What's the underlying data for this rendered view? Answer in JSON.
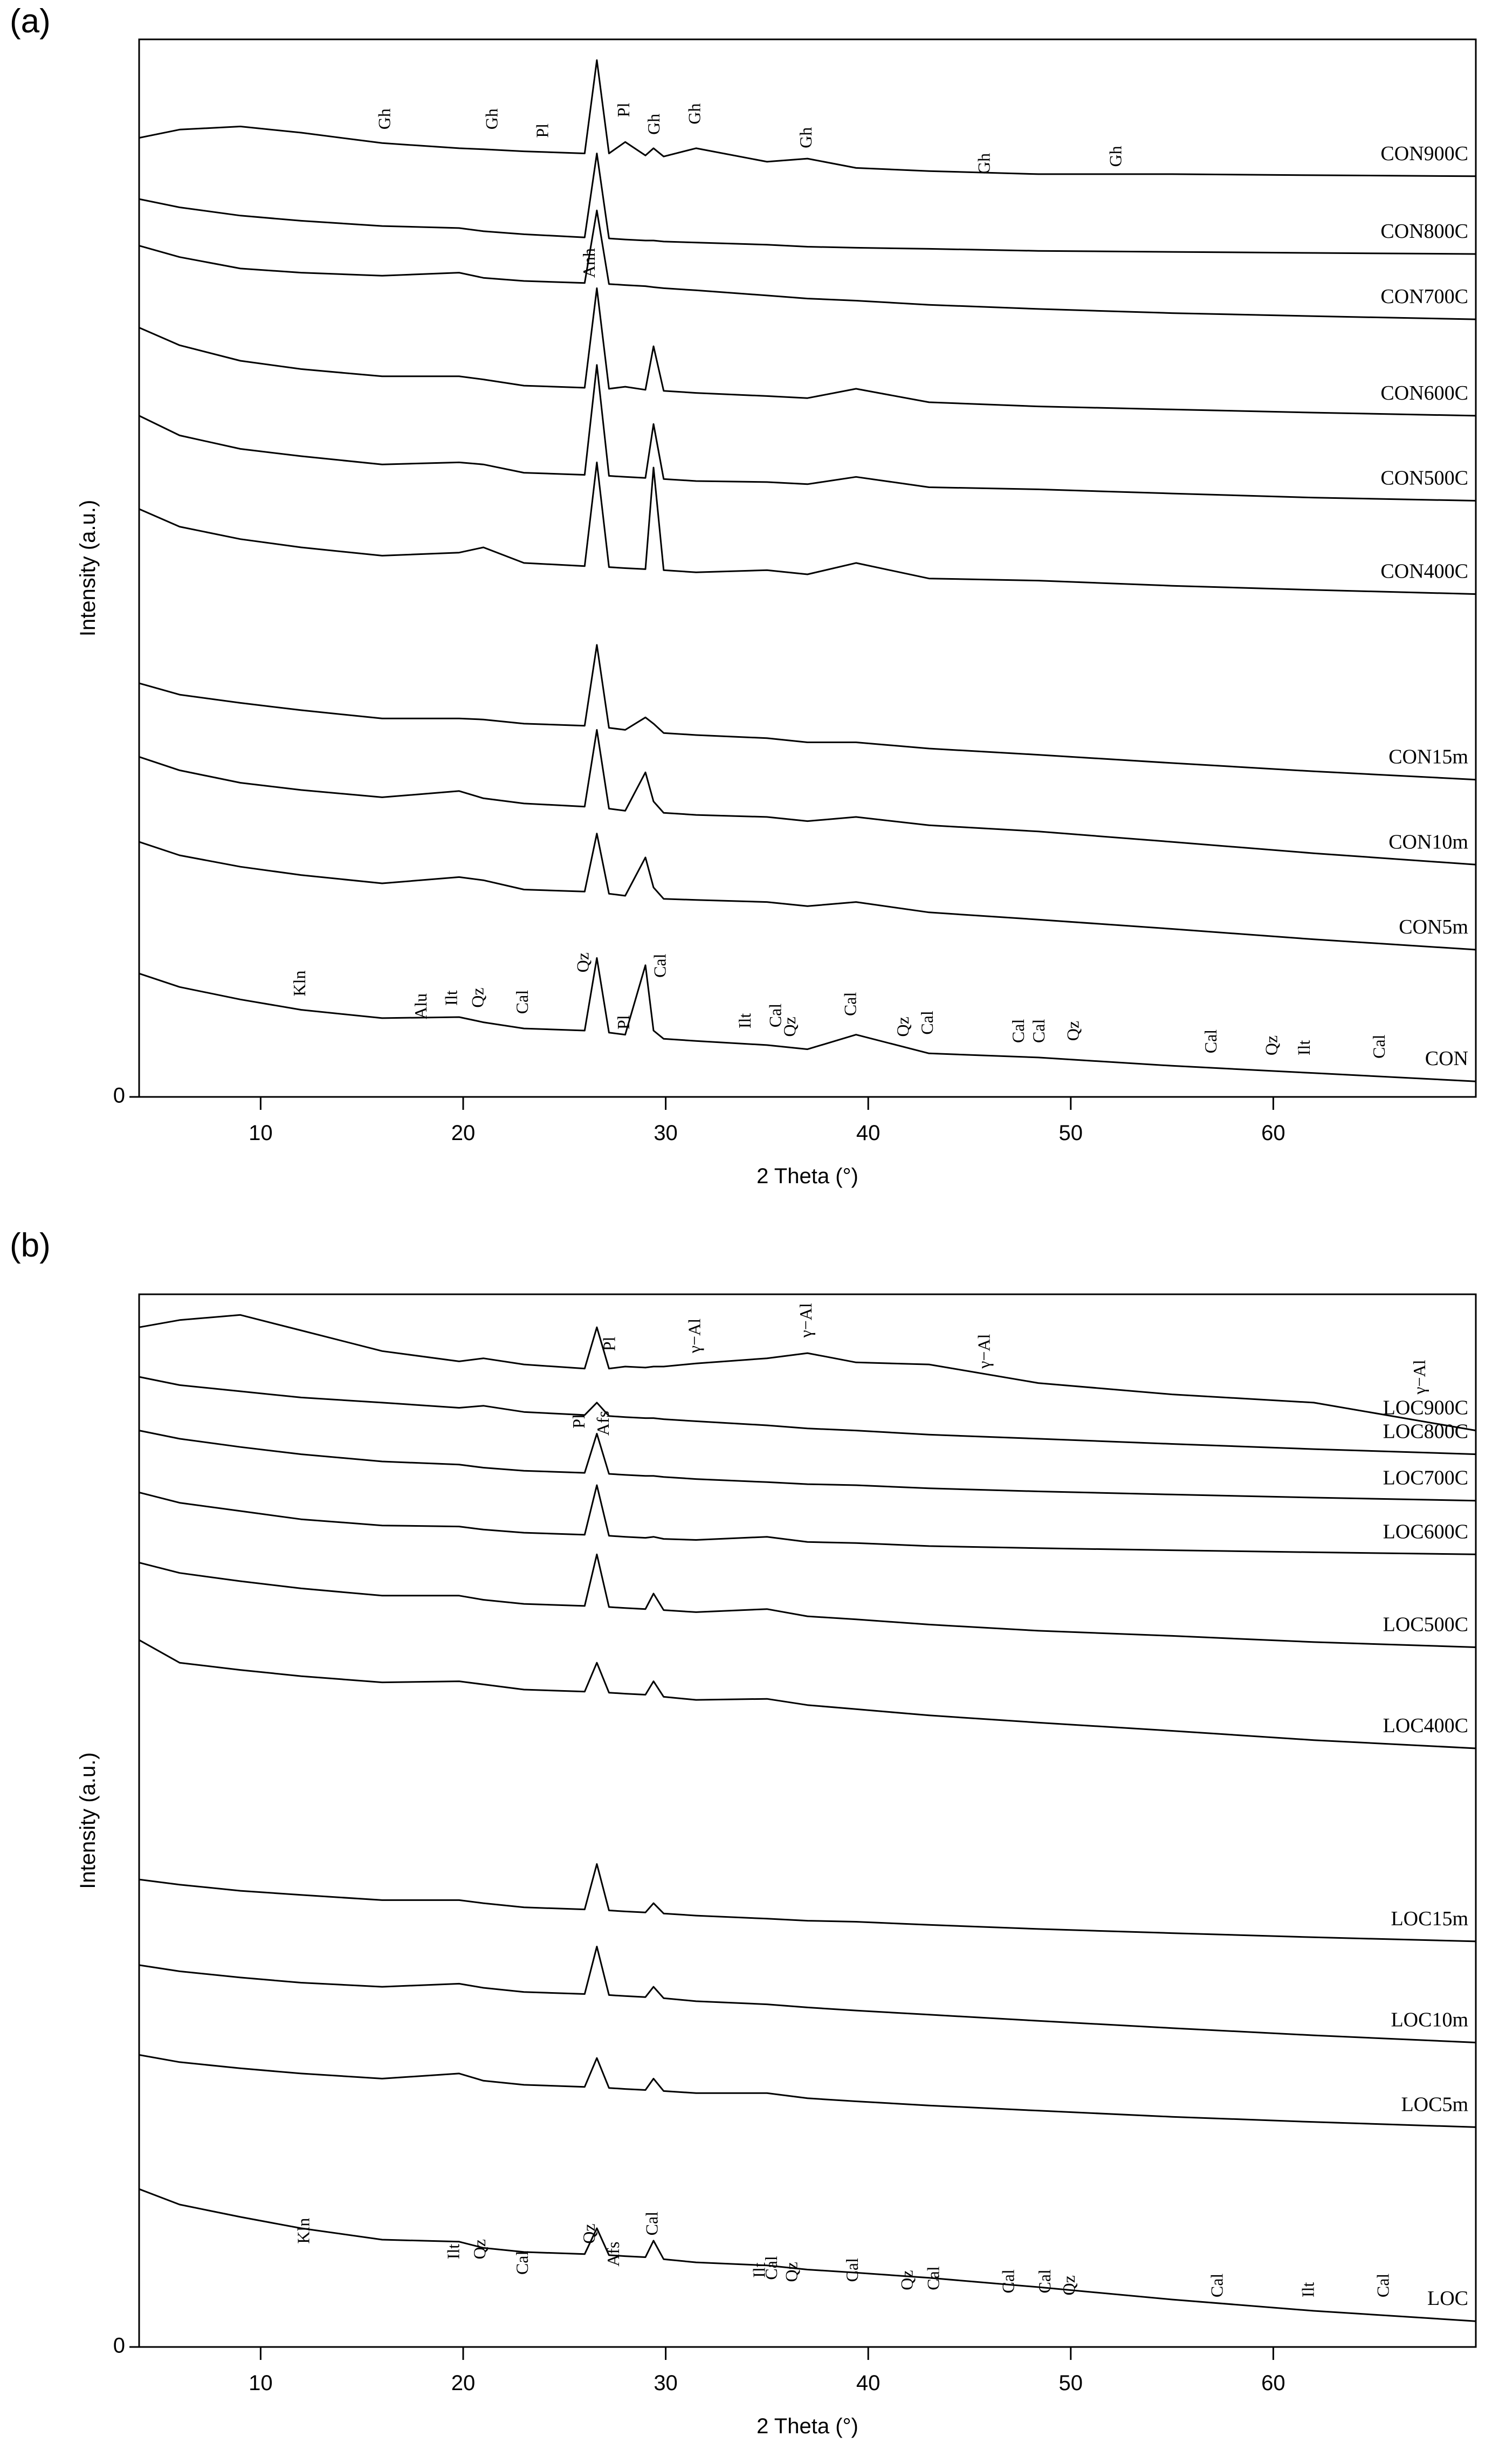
{
  "chart_data": [
    {
      "type": "line",
      "panel_label": "(a)",
      "xlabel": "2 Theta (°)",
      "ylabel": "Intensity (a.u.)",
      "x": [
        4,
        6,
        9,
        12,
        16,
        19.8,
        21,
        23,
        26.0,
        26.6,
        27.2,
        28,
        29.0,
        29.4,
        29.9,
        31.5,
        35,
        37,
        39.4,
        43,
        48.4,
        55,
        62,
        70
      ],
      "xlim": [
        4,
        70
      ],
      "xticks": [
        10,
        20,
        30,
        40,
        50,
        60
      ],
      "ylim": [
        0,
        102
      ],
      "yticks": [
        0
      ],
      "series": [
        {
          "name": "CON900C",
          "color": "#000000",
          "values": [
            92.5,
            93.3,
            93.6,
            93,
            92,
            91.5,
            91.4,
            91.2,
            91,
            100,
            91,
            92.1,
            90.8,
            91.5,
            90.7,
            91.5,
            90.2,
            90.5,
            89.6,
            89.3,
            89,
            89,
            88.9,
            88.8
          ]
        },
        {
          "name": "CON800C",
          "color": "#000000",
          "values": [
            86.6,
            85.8,
            85,
            84.5,
            84,
            83.8,
            83.5,
            83.2,
            82.9,
            91,
            82.8,
            82.7,
            82.6,
            82.6,
            82.5,
            82.4,
            82.2,
            82,
            81.9,
            81.8,
            81.6,
            81.5,
            81.4,
            81.3
          ]
        },
        {
          "name": "CON700C",
          "color": "#000000",
          "values": [
            82.1,
            81,
            79.9,
            79.5,
            79.2,
            79.5,
            79,
            78.7,
            78.5,
            85.5,
            78.4,
            78.3,
            78.2,
            78.1,
            78,
            77.8,
            77.3,
            77,
            76.8,
            76.4,
            76,
            75.6,
            75.3,
            75
          ]
        },
        {
          "name": "CON600C",
          "color": "#000000",
          "values": [
            74.2,
            72.5,
            71,
            70.2,
            69.5,
            69.5,
            69.2,
            68.6,
            68.4,
            78,
            68.3,
            68.5,
            68.2,
            72.4,
            68.1,
            67.9,
            67.6,
            67.4,
            68.3,
            67,
            66.6,
            66.3,
            66,
            65.7
          ]
        },
        {
          "name": "CON500C",
          "color": "#000000",
          "values": [
            65.7,
            63.8,
            62.5,
            61.8,
            61,
            61.2,
            61,
            60.2,
            60,
            70.6,
            59.9,
            59.8,
            59.7,
            64.9,
            59.6,
            59.4,
            59.3,
            59.1,
            59.8,
            58.8,
            58.6,
            58.2,
            57.8,
            57.5
          ]
        },
        {
          "name": "CON400C",
          "color": "#000000",
          "values": [
            56.7,
            55,
            53.8,
            53,
            52.2,
            52.5,
            53,
            51.5,
            51.2,
            61.2,
            51.1,
            51,
            50.9,
            60.7,
            50.8,
            50.6,
            50.8,
            50.4,
            51.5,
            50,
            49.8,
            49.3,
            48.9,
            48.5
          ]
        },
        {
          "name": "CON15m",
          "color": "#000000",
          "values": [
            39.9,
            38.8,
            38,
            37.3,
            36.5,
            36.5,
            36.4,
            36,
            35.8,
            43.6,
            35.6,
            35.4,
            36.6,
            36,
            35.1,
            34.9,
            34.6,
            34.2,
            34.2,
            33.6,
            33,
            32.2,
            31.4,
            30.6
          ]
        },
        {
          "name": "CON10m",
          "color": "#000000",
          "values": [
            32.8,
            31.5,
            30.3,
            29.6,
            28.9,
            29.5,
            28.8,
            28.3,
            28,
            35.4,
            27.8,
            27.6,
            31.3,
            28.5,
            27.4,
            27.2,
            27,
            26.6,
            27,
            26.2,
            25.6,
            24.6,
            23.5,
            22.4
          ]
        },
        {
          "name": "CON5m",
          "color": "#000000",
          "values": [
            24.6,
            23.3,
            22.2,
            21.4,
            20.6,
            21.2,
            20.9,
            20,
            19.8,
            25.4,
            19.6,
            19.4,
            23.1,
            20.2,
            19.1,
            19,
            18.8,
            18.4,
            18.8,
            17.8,
            17.1,
            16.2,
            15.2,
            14.2
          ]
        },
        {
          "name": "CON",
          "color": "#000000",
          "values": [
            11.9,
            10.6,
            9.4,
            8.4,
            7.6,
            7.7,
            7.2,
            6.6,
            6.4,
            13.4,
            6.2,
            6,
            12.7,
            6.4,
            5.6,
            5.4,
            5,
            4.6,
            6,
            4.2,
            3.8,
            3,
            2.3,
            1.5
          ]
        }
      ],
      "annotations": [
        {
          "text": "Gh",
          "x": 16.2,
          "y": 93.3
        },
        {
          "text": "Gh",
          "x": 21.5,
          "y": 93.3
        },
        {
          "text": "Pl",
          "x": 24,
          "y": 92.5
        },
        {
          "text": "Pl",
          "x": 28,
          "y": 94.5
        },
        {
          "text": "Gh",
          "x": 29.5,
          "y": 92.8
        },
        {
          "text": "Gh",
          "x": 31.5,
          "y": 93.8
        },
        {
          "text": "Gh",
          "x": 37,
          "y": 91.5
        },
        {
          "text": "Gh",
          "x": 45.8,
          "y": 89
        },
        {
          "text": "Gh",
          "x": 52.3,
          "y": 89.7
        },
        {
          "text": "Anh",
          "x": 26.3,
          "y": 79
        },
        {
          "text": "Kln",
          "x": 12,
          "y": 9.7
        },
        {
          "text": "Alu",
          "x": 18,
          "y": 7.5
        },
        {
          "text": "Ilt",
          "x": 19.5,
          "y": 8.8
        },
        {
          "text": "Qz",
          "x": 20.8,
          "y": 8.6
        },
        {
          "text": "Cal",
          "x": 23,
          "y": 8
        },
        {
          "text": "Qz",
          "x": 26,
          "y": 12
        },
        {
          "text": "Pl",
          "x": 28,
          "y": 6.5
        },
        {
          "text": "Cal",
          "x": 29.8,
          "y": 11.5
        },
        {
          "text": "Ilt",
          "x": 34,
          "y": 6.6
        },
        {
          "text": "Cal",
          "x": 35.5,
          "y": 6.7
        },
        {
          "text": "Qz",
          "x": 36.2,
          "y": 5.8
        },
        {
          "text": "Cal",
          "x": 39.2,
          "y": 7.8
        },
        {
          "text": "Qz",
          "x": 41.8,
          "y": 5.8
        },
        {
          "text": "Cal",
          "x": 43,
          "y": 6
        },
        {
          "text": "Cal",
          "x": 47.5,
          "y": 5.2
        },
        {
          "text": "Cal",
          "x": 48.5,
          "y": 5.2
        },
        {
          "text": "Qz",
          "x": 50.2,
          "y": 5.4
        },
        {
          "text": "Cal",
          "x": 57,
          "y": 4.2
        },
        {
          "text": "Qz",
          "x": 60,
          "y": 4
        },
        {
          "text": "Ilt",
          "x": 61.6,
          "y": 4
        },
        {
          "text": "Cal",
          "x": 65.3,
          "y": 3.7
        }
      ]
    },
    {
      "type": "line",
      "panel_label": "(b)",
      "xlabel": "2 Theta (°)",
      "ylabel": "Intensity (a.u.)",
      "x": [
        4,
        6,
        9,
        12,
        16,
        19.8,
        21,
        23,
        26.0,
        26.6,
        27.2,
        28,
        29.0,
        29.4,
        29.9,
        31.5,
        35,
        37,
        39.4,
        43,
        48.4,
        55,
        62,
        70
      ],
      "xlim": [
        4,
        70
      ],
      "xticks": [
        10,
        20,
        30,
        40,
        50,
        60
      ],
      "ylim": [
        0,
        102
      ],
      "yticks": [
        0
      ],
      "series": [
        {
          "name": "LOC900C",
          "color": "#000000",
          "values": [
            98.8,
            99.5,
            100,
            98.5,
            96.5,
            95.5,
            95.8,
            95.2,
            94.8,
            98.8,
            94.8,
            95,
            94.9,
            95,
            95,
            95.3,
            95.8,
            96.3,
            95.4,
            95.2,
            93.4,
            92.3,
            91.5,
            88.8
          ]
        },
        {
          "name": "LOC800C",
          "color": "#000000",
          "values": [
            94,
            93.2,
            92.6,
            92,
            91.5,
            91,
            91.2,
            90.6,
            90.3,
            91.5,
            90.2,
            90.1,
            90,
            90,
            89.9,
            89.7,
            89.3,
            89,
            88.8,
            88.4,
            88,
            87.5,
            87,
            86.5
          ]
        },
        {
          "name": "LOC700C",
          "color": "#000000",
          "values": [
            88.8,
            88,
            87.2,
            86.5,
            85.8,
            85.5,
            85.2,
            84.9,
            84.7,
            88.5,
            84.6,
            84.5,
            84.4,
            84.4,
            84.3,
            84.1,
            83.8,
            83.6,
            83.5,
            83.2,
            82.9,
            82.6,
            82.3,
            82
          ]
        },
        {
          "name": "LOC600C",
          "color": "#000000",
          "values": [
            82.8,
            81.8,
            81,
            80.2,
            79.6,
            79.5,
            79.2,
            78.9,
            78.7,
            83.5,
            78.6,
            78.5,
            78.4,
            78.5,
            78.3,
            78.2,
            78.5,
            78,
            77.9,
            77.6,
            77.4,
            77.2,
            77,
            76.8
          ]
        },
        {
          "name": "LOC500C",
          "color": "#000000",
          "values": [
            76,
            75,
            74.2,
            73.5,
            72.8,
            72.8,
            72.4,
            72,
            71.8,
            76.8,
            71.7,
            71.6,
            71.5,
            73,
            71.4,
            71.2,
            71.5,
            70.8,
            70.5,
            70,
            69.4,
            68.9,
            68.3,
            67.8
          ]
        },
        {
          "name": "LOC400C",
          "color": "#000000",
          "values": [
            68.5,
            66.3,
            65.6,
            65,
            64.4,
            64.5,
            64.2,
            63.7,
            63.5,
            66.3,
            63.4,
            63.3,
            63.2,
            64.5,
            63,
            62.7,
            62.8,
            62.2,
            61.8,
            61.2,
            60.5,
            59.7,
            58.8,
            58
          ]
        },
        {
          "name": "LOC15m",
          "color": "#000000",
          "values": [
            45.3,
            44.8,
            44.2,
            43.8,
            43.3,
            43.3,
            43,
            42.6,
            42.4,
            46.8,
            42.3,
            42.2,
            42.1,
            43,
            42,
            41.8,
            41.5,
            41.3,
            41.2,
            40.9,
            40.5,
            40.1,
            39.7,
            39.3
          ]
        },
        {
          "name": "LOC10m",
          "color": "#000000",
          "values": [
            37,
            36.4,
            35.8,
            35.3,
            34.9,
            35.2,
            34.8,
            34.4,
            34.2,
            38.8,
            34.1,
            34,
            33.9,
            34.9,
            33.8,
            33.5,
            33.2,
            32.9,
            32.6,
            32.2,
            31.6,
            30.9,
            30.2,
            29.5
          ]
        },
        {
          "name": "LOC5m",
          "color": "#000000",
          "values": [
            28.3,
            27.6,
            27,
            26.5,
            26,
            26.5,
            25.8,
            25.4,
            25.2,
            28,
            25.1,
            25,
            24.9,
            26,
            24.8,
            24.6,
            24.6,
            24.1,
            23.8,
            23.4,
            22.9,
            22.3,
            21.8,
            21.3
          ]
        },
        {
          "name": "LOC",
          "color": "#000000",
          "values": [
            15.3,
            13.8,
            12.6,
            11.5,
            10.4,
            10.2,
            9.6,
            9.2,
            9,
            11.5,
            8.9,
            8.8,
            8.7,
            10.3,
            8.5,
            8.2,
            7.9,
            7.5,
            7.2,
            6.7,
            5.8,
            4.6,
            3.5,
            2.5
          ]
        }
      ],
      "annotations": [
        {
          "text": "Pl",
          "x": 27.3,
          "y": 96.5
        },
        {
          "text": "γ−Al",
          "x": 31.5,
          "y": 96.3
        },
        {
          "text": "γ−Al",
          "x": 37,
          "y": 97.8
        },
        {
          "text": "γ−Al",
          "x": 45.8,
          "y": 94.8
        },
        {
          "text": "γ−Al",
          "x": 67.3,
          "y": 92.3
        },
        {
          "text": "Pl",
          "x": 25.8,
          "y": 89
        },
        {
          "text": "Afs",
          "x": 27,
          "y": 88.3
        },
        {
          "text": "Kln",
          "x": 12.2,
          "y": 10
        },
        {
          "text": "Ilt",
          "x": 19.6,
          "y": 8.5
        },
        {
          "text": "Qz",
          "x": 20.9,
          "y": 8.5
        },
        {
          "text": "Cal",
          "x": 23,
          "y": 7
        },
        {
          "text": "Qz",
          "x": 26.3,
          "y": 10
        },
        {
          "text": "Afs",
          "x": 27.5,
          "y": 7.8
        },
        {
          "text": "Cal",
          "x": 29.4,
          "y": 10.8
        },
        {
          "text": "Ilt",
          "x": 34.7,
          "y": 6.7
        },
        {
          "text": "Cal",
          "x": 35.3,
          "y": 6.5
        },
        {
          "text": "Qz",
          "x": 36.3,
          "y": 6.3
        },
        {
          "text": "Cal",
          "x": 39.3,
          "y": 6.3
        },
        {
          "text": "Qz",
          "x": 42,
          "y": 5.5
        },
        {
          "text": "Cal",
          "x": 43.3,
          "y": 5.5
        },
        {
          "text": "Cal",
          "x": 47,
          "y": 5.2
        },
        {
          "text": "Cal",
          "x": 48.8,
          "y": 5.2
        },
        {
          "text": "Qz",
          "x": 50,
          "y": 5
        },
        {
          "text": "Cal",
          "x": 57.3,
          "y": 4.8
        },
        {
          "text": "Ilt",
          "x": 61.8,
          "y": 4.8
        },
        {
          "text": "Cal",
          "x": 65.5,
          "y": 4.8
        }
      ]
    }
  ]
}
